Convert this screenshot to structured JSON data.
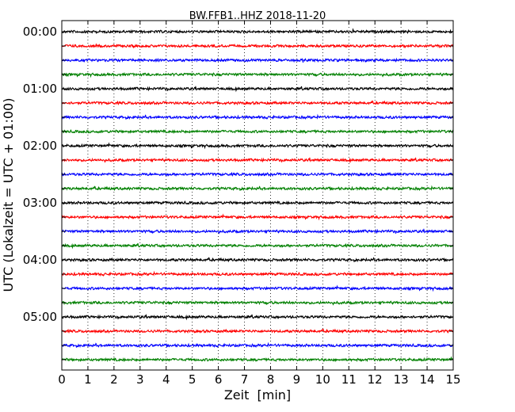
{
  "chart_data": {
    "type": "line",
    "title": "BW.FFB1..HHZ 2018-11-20",
    "xlabel": "Zeit  [min]",
    "ylabel": "UTC (Lokalzeit = UTC + 01:00)",
    "xlim": [
      0,
      15
    ],
    "x_ticks": [
      "0",
      "1",
      "2",
      "3",
      "4",
      "5",
      "6",
      "7",
      "8",
      "9",
      "10",
      "11",
      "12",
      "13",
      "14",
      "15"
    ],
    "y_tick_labels": [
      "00:00",
      "01:00",
      "02:00",
      "03:00",
      "04:00",
      "05:00"
    ],
    "traces_per_hour": 4,
    "trace_count": 24,
    "series_colors": [
      "#000000",
      "#ff0000",
      "#0000ff",
      "#008000"
    ],
    "grid": "vertical dotted",
    "traces": [
      {
        "start": "00:00"
      },
      {
        "start": "00:15"
      },
      {
        "start": "00:30"
      },
      {
        "start": "00:45"
      },
      {
        "start": "01:00"
      },
      {
        "start": "01:15"
      },
      {
        "start": "01:30"
      },
      {
        "start": "01:45"
      },
      {
        "start": "02:00"
      },
      {
        "start": "02:15"
      },
      {
        "start": "02:30"
      },
      {
        "start": "02:45"
      },
      {
        "start": "03:00"
      },
      {
        "start": "03:15"
      },
      {
        "start": "03:30"
      },
      {
        "start": "03:45"
      },
      {
        "start": "04:00"
      },
      {
        "start": "04:15"
      },
      {
        "start": "04:30"
      },
      {
        "start": "04:45"
      },
      {
        "start": "05:00"
      },
      {
        "start": "05:15"
      },
      {
        "start": "05:30"
      },
      {
        "start": "05:45"
      }
    ]
  }
}
